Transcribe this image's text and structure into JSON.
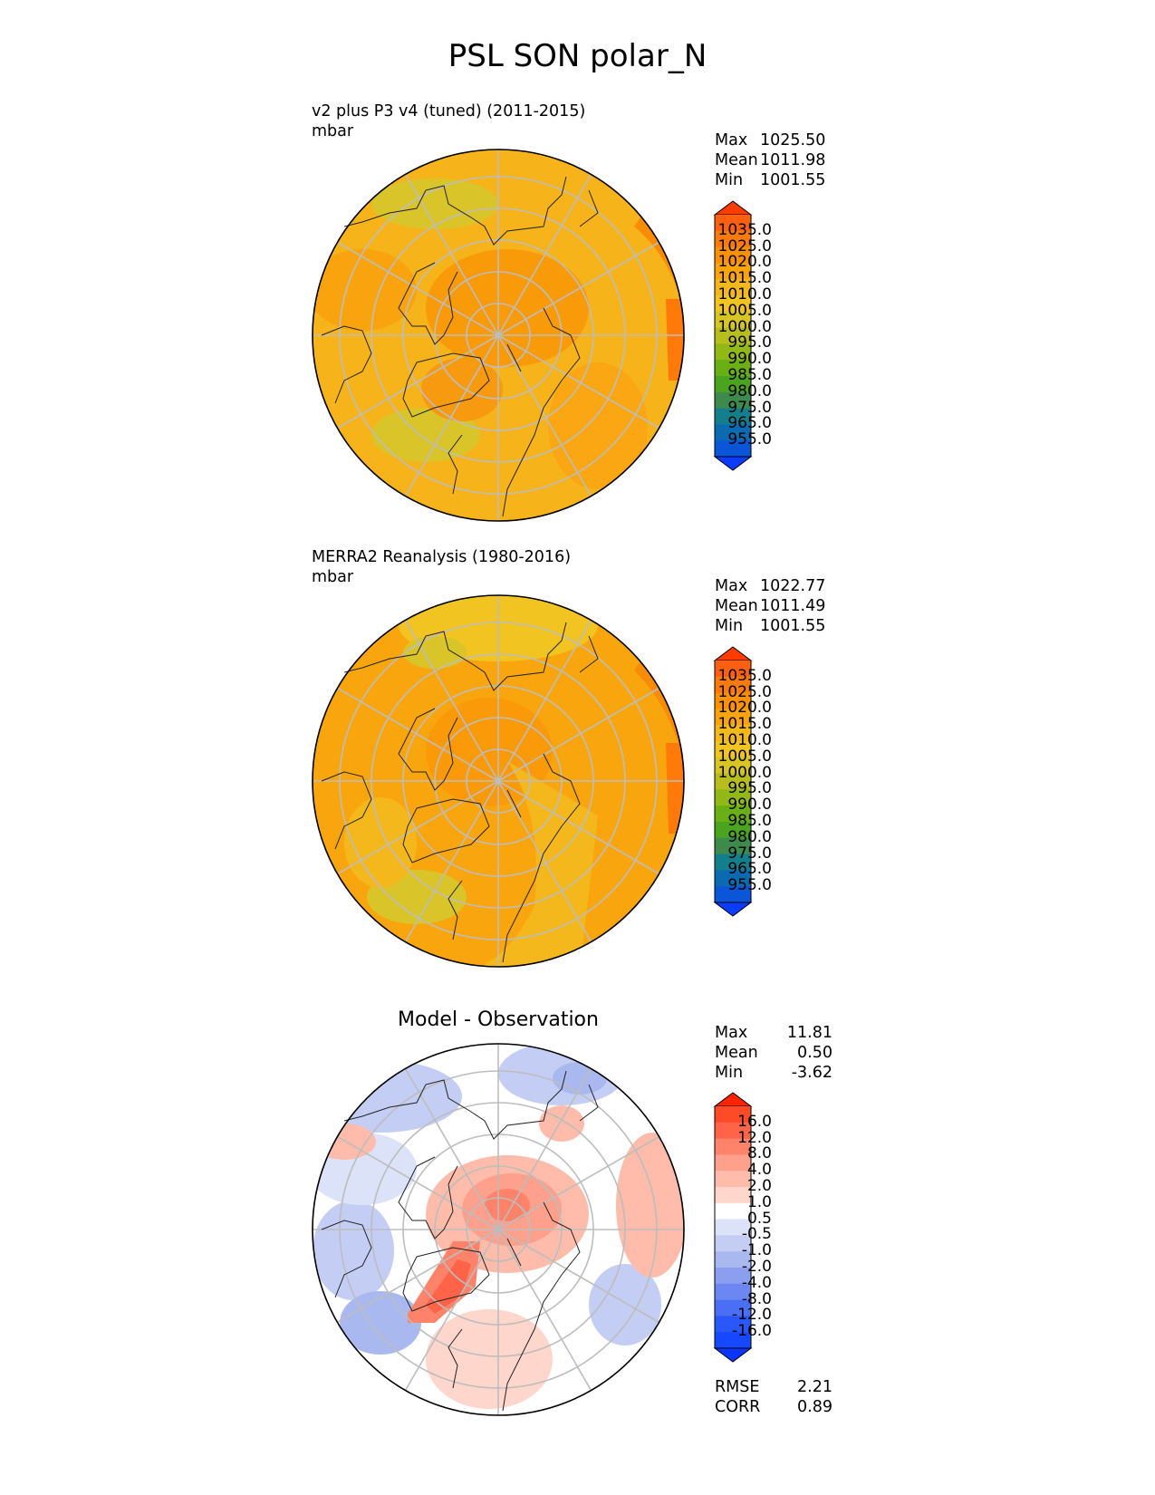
{
  "figure": {
    "title": "PSL SON polar_N"
  },
  "panels": [
    {
      "title": "v2 plus P3 v4 (tuned) (2011-2015)",
      "units": "mbar",
      "stats": [
        {
          "label": "Max",
          "value": "1025.50"
        },
        {
          "label": "Mean",
          "value": "1011.98"
        },
        {
          "label": "Min",
          "value": "1001.55"
        }
      ]
    },
    {
      "title": "MERRA2 Reanalysis (1980-2016)",
      "units": "mbar",
      "stats": [
        {
          "label": "Max",
          "value": "1022.77"
        },
        {
          "label": "Mean",
          "value": "1011.49"
        },
        {
          "label": "Min",
          "value": "1001.55"
        }
      ]
    },
    {
      "title": "Model - Observation",
      "stats": [
        {
          "label": "Max",
          "value": "11.81"
        },
        {
          "label": "Mean",
          "value": "0.50"
        },
        {
          "label": "Min",
          "value": "-3.62"
        }
      ],
      "metrics": [
        {
          "label": "RMSE",
          "value": "2.21"
        },
        {
          "label": "CORR",
          "value": "0.89"
        }
      ]
    }
  ],
  "colorbars": {
    "absolute": {
      "ticks": [
        "1035.0",
        "1025.0",
        "1020.0",
        "1015.0",
        "1010.0",
        "1005.0",
        "1000.0",
        "995.0",
        "990.0",
        "985.0",
        "980.0",
        "975.0",
        "965.0",
        "955.0"
      ],
      "colors": [
        "#ff6010",
        "#ff7a08",
        "#ff9000",
        "#fca40a",
        "#f5b81c",
        "#f2c421",
        "#d6c522",
        "#b8bd1e",
        "#92b816",
        "#6aaf14",
        "#4aa420",
        "#3e8a4c",
        "#147f8c",
        "#0b6ab0",
        "#0a55d8"
      ],
      "arrow_top": "#ff3c00",
      "arrow_bottom": "#0a3cff"
    },
    "difference": {
      "ticks": [
        "16.0",
        "12.0",
        "8.0",
        "4.0",
        "2.0",
        "1.0",
        "0.5",
        "-0.5",
        "-1.0",
        "-2.0",
        "-4.0",
        "-8.0",
        "-12.0",
        "-16.0"
      ],
      "colors": [
        "#ff4a28",
        "#ff6448",
        "#ff826a",
        "#ffa08c",
        "#ffbcaa",
        "#ffd6cc",
        "#ffffff",
        "#dce2f8",
        "#c4cef4",
        "#aab8f0",
        "#8c9ef0",
        "#6c86f2",
        "#4a6ef4",
        "#2a58f8",
        "#1648ff"
      ],
      "arrow_top": "#ff2400",
      "arrow_bottom": "#0a34ff"
    }
  }
}
